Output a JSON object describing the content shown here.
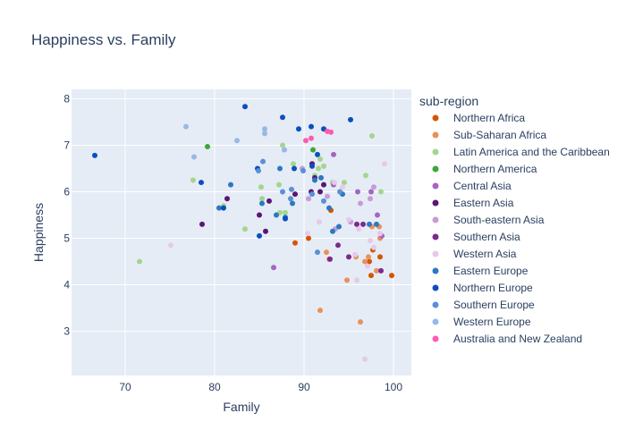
{
  "chart_data": {
    "type": "scatter",
    "title": "Happiness vs. Family",
    "xlabel": "Family",
    "ylabel": "Happiness",
    "xlim": [
      64,
      102
    ],
    "ylim": [
      2.05,
      8.2
    ],
    "xticks": [
      70,
      80,
      90,
      100
    ],
    "yticks": [
      3,
      4,
      5,
      6,
      7,
      8
    ],
    "grid": true,
    "legend": {
      "title": "sub-region",
      "position": "right"
    },
    "series": [
      {
        "name": "Northern Africa",
        "color": "#d45500",
        "points": [
          [
            97.3,
            4.5
          ],
          [
            97.5,
            4.2
          ],
          [
            99.8,
            4.2
          ],
          [
            98.5,
            4.6
          ],
          [
            89.0,
            4.9
          ],
          [
            90.5,
            5.0
          ],
          [
            93.0,
            5.6
          ],
          [
            97.7,
            4.75
          ]
        ]
      },
      {
        "name": "Sub-Saharan Africa",
        "color": "#e9915c",
        "points": [
          [
            91.8,
            3.45
          ],
          [
            96.3,
            3.2
          ],
          [
            94.8,
            4.1
          ],
          [
            95.8,
            4.6
          ],
          [
            96.8,
            4.5
          ],
          [
            97.2,
            4.6
          ],
          [
            98.1,
            4.3
          ],
          [
            97.6,
            5.25
          ],
          [
            98.4,
            5.25
          ],
          [
            98.5,
            5.0
          ],
          [
            92.5,
            4.7
          ],
          [
            92.8,
            4.55
          ]
        ]
      },
      {
        "name": "Latin America and the Caribbean",
        "color": "#a3d68d",
        "points": [
          [
            71.6,
            4.5
          ],
          [
            77.6,
            6.25
          ],
          [
            81.0,
            5.7
          ],
          [
            83.4,
            5.2
          ],
          [
            85.2,
            6.1
          ],
          [
            85.3,
            5.85
          ],
          [
            87.2,
            6.15
          ],
          [
            87.3,
            5.55
          ],
          [
            87.6,
            7.0
          ],
          [
            87.9,
            5.55
          ],
          [
            88.8,
            6.6
          ],
          [
            91.2,
            6.35
          ],
          [
            91.6,
            6.5
          ],
          [
            91.8,
            6.7
          ],
          [
            92.2,
            6.55
          ],
          [
            93.2,
            6.2
          ],
          [
            94.5,
            6.2
          ],
          [
            96.9,
            6.35
          ],
          [
            97.6,
            7.2
          ],
          [
            98.6,
            6.0
          ]
        ]
      },
      {
        "name": "Northern America",
        "color": "#3ba63b",
        "points": [
          [
            79.2,
            6.97
          ],
          [
            91.0,
            6.9
          ]
        ]
      },
      {
        "name": "Central Asia",
        "color": "#a466c2",
        "points": [
          [
            86.6,
            4.37
          ],
          [
            93.3,
            6.8
          ],
          [
            96.0,
            6.0
          ],
          [
            97.5,
            6.0
          ],
          [
            98.2,
            5.5
          ],
          [
            98.7,
            5.05
          ],
          [
            93.3,
            6.15
          ]
        ]
      },
      {
        "name": "Eastern Asia",
        "color": "#5c1574",
        "points": [
          [
            78.6,
            5.3
          ],
          [
            81.4,
            5.85
          ],
          [
            85.0,
            5.5
          ],
          [
            85.7,
            5.15
          ],
          [
            86.1,
            5.8
          ],
          [
            89.0,
            5.95
          ],
          [
            90.8,
            6.0
          ],
          [
            91.2,
            6.3
          ],
          [
            91.8,
            6.0
          ],
          [
            92.2,
            6.15
          ],
          [
            90.9,
            6.6
          ]
        ]
      },
      {
        "name": "South-eastern Asia",
        "color": "#c89bd4",
        "points": [
          [
            89.8,
            6.5
          ],
          [
            90.5,
            5.85
          ],
          [
            92.6,
            5.9
          ],
          [
            93.5,
            5.2
          ],
          [
            95.2,
            5.35
          ],
          [
            96.3,
            5.75
          ],
          [
            97.4,
            5.85
          ],
          [
            97.8,
            6.1
          ]
        ]
      },
      {
        "name": "Southern Asia",
        "color": "#7b2a8a",
        "points": [
          [
            92.9,
            4.55
          ],
          [
            93.8,
            4.85
          ],
          [
            95.0,
            4.6
          ],
          [
            95.9,
            5.3
          ],
          [
            96.6,
            5.3
          ],
          [
            98.6,
            4.3
          ]
        ]
      },
      {
        "name": "Western Asia",
        "color": "#e8c8e8",
        "points": [
          [
            75.1,
            4.85
          ],
          [
            90.4,
            5.1
          ],
          [
            91.7,
            5.35
          ],
          [
            93.4,
            6.2
          ],
          [
            95.0,
            5.4
          ],
          [
            95.7,
            4.65
          ],
          [
            95.9,
            4.1
          ],
          [
            96.1,
            5.2
          ],
          [
            96.8,
            2.4
          ],
          [
            97.1,
            4.4
          ],
          [
            97.4,
            4.95
          ],
          [
            97.8,
            4.8
          ],
          [
            98.5,
            5.1
          ],
          [
            99.0,
            6.6
          ],
          [
            94.3,
            6.1
          ]
        ]
      },
      {
        "name": "Eastern Europe",
        "color": "#2b79c2",
        "points": [
          [
            80.5,
            5.65
          ],
          [
            81.8,
            6.15
          ],
          [
            85.3,
            5.75
          ],
          [
            86.9,
            5.5
          ],
          [
            87.3,
            6.5
          ],
          [
            87.9,
            5.45
          ],
          [
            88.7,
            5.75
          ],
          [
            91.2,
            6.25
          ],
          [
            92.8,
            5.65
          ],
          [
            93.2,
            5.15
          ],
          [
            93.9,
            5.25
          ],
          [
            94.3,
            5.95
          ],
          [
            97.3,
            5.3
          ],
          [
            98.1,
            5.3
          ],
          [
            91.9,
            6.3
          ]
        ]
      },
      {
        "name": "Northern Europe",
        "color": "#0a4fbf",
        "points": [
          [
            66.6,
            6.78
          ],
          [
            78.5,
            6.2
          ],
          [
            83.4,
            7.83
          ],
          [
            84.8,
            6.5
          ],
          [
            87.6,
            7.6
          ],
          [
            89.4,
            7.35
          ],
          [
            90.8,
            7.4
          ],
          [
            92.2,
            7.35
          ],
          [
            95.2,
            7.55
          ],
          [
            91.5,
            6.8
          ],
          [
            90.9,
            6.55
          ],
          [
            88.9,
            6.5
          ],
          [
            81.0,
            5.65
          ],
          [
            85.0,
            5.05
          ],
          [
            87.9,
            5.42
          ]
        ]
      },
      {
        "name": "Southern Europe",
        "color": "#5b8fd6",
        "points": [
          [
            84.9,
            6.45
          ],
          [
            85.4,
            6.65
          ],
          [
            87.6,
            6.0
          ],
          [
            88.5,
            5.85
          ],
          [
            89.9,
            6.45
          ],
          [
            90.9,
            5.95
          ],
          [
            92.2,
            5.8
          ],
          [
            94.0,
            6.0
          ],
          [
            91.5,
            4.7
          ],
          [
            88.6,
            6.05
          ]
        ]
      },
      {
        "name": "Western Europe",
        "color": "#96b9e6",
        "points": [
          [
            76.8,
            7.4
          ],
          [
            77.7,
            6.75
          ],
          [
            82.5,
            7.1
          ],
          [
            85.6,
            7.35
          ],
          [
            85.6,
            7.25
          ],
          [
            87.8,
            6.9
          ]
        ]
      },
      {
        "name": "Australia and New Zealand",
        "color": "#ff59b0",
        "points": [
          [
            90.2,
            7.1
          ],
          [
            90.8,
            7.15
          ],
          [
            92.6,
            7.3
          ],
          [
            93.0,
            7.28
          ]
        ]
      }
    ]
  }
}
